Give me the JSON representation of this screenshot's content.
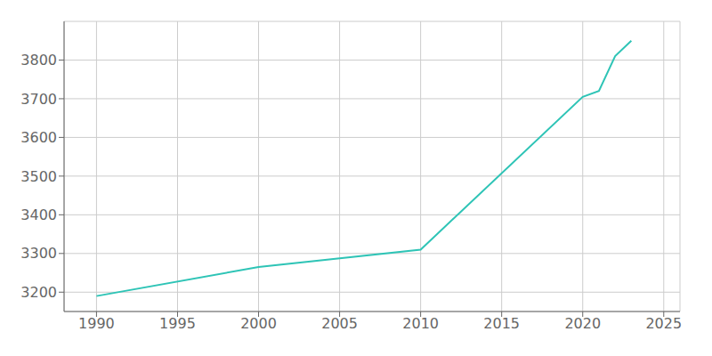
{
  "chart_data": {
    "type": "line",
    "x": [
      1990,
      2000,
      2010,
      2020,
      2021,
      2022,
      2023
    ],
    "values": [
      3190,
      3265,
      3310,
      3705,
      3720,
      3810,
      3850
    ],
    "color": "#2ec4b6",
    "xlim": [
      1988,
      2026
    ],
    "ylim": [
      3150,
      3900
    ],
    "xticks": [
      1990,
      1995,
      2000,
      2005,
      2010,
      2015,
      2020,
      2025
    ],
    "yticks": [
      3200,
      3300,
      3400,
      3500,
      3600,
      3700,
      3800
    ],
    "grid": true
  }
}
